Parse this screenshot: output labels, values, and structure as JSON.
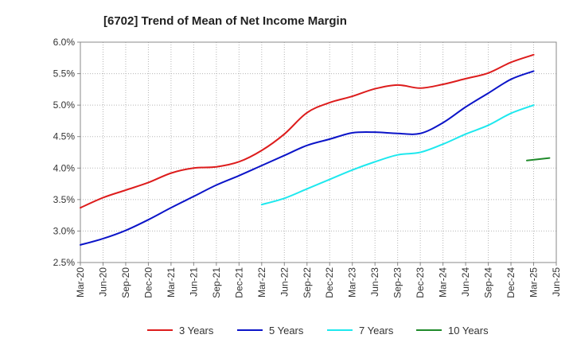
{
  "chart_data": {
    "type": "line",
    "title": "[6702]  Trend of Mean of Net Income Margin",
    "xlabel": "",
    "ylabel": "",
    "grid": true,
    "legend_position": "bottom",
    "x_ticks": [
      "Mar-20",
      "Jun-20",
      "Sep-20",
      "Dec-20",
      "Mar-21",
      "Jun-21",
      "Sep-21",
      "Dec-21",
      "Mar-22",
      "Jun-22",
      "Sep-22",
      "Dec-22",
      "Mar-23",
      "Jun-23",
      "Sep-23",
      "Dec-23",
      "Mar-24",
      "Jun-24",
      "Sep-24",
      "Dec-24",
      "Mar-25",
      "Jun-25"
    ],
    "y_ticks": [
      "2.5%",
      "3.0%",
      "3.5%",
      "4.0%",
      "4.5%",
      "5.0%",
      "5.5%",
      "6.0%"
    ],
    "ylim": [
      2.5,
      6.0
    ],
    "series": [
      {
        "name": "3 Years",
        "color": "#dd1c1c",
        "start_index": 0,
        "values": [
          3.37,
          3.53,
          3.65,
          3.77,
          3.92,
          4.0,
          4.02,
          4.1,
          4.28,
          4.54,
          4.88,
          5.04,
          5.14,
          5.26,
          5.32,
          5.27,
          5.33,
          5.42,
          5.51,
          5.68,
          5.8
        ]
      },
      {
        "name": "5 Years",
        "color": "#0b14c8",
        "start_index": 0,
        "values": [
          2.78,
          2.88,
          3.01,
          3.18,
          3.37,
          3.55,
          3.73,
          3.88,
          4.04,
          4.2,
          4.36,
          4.46,
          4.56,
          4.57,
          4.55,
          4.55,
          4.72,
          4.97,
          5.19,
          5.41,
          5.54
        ]
      },
      {
        "name": "7 Years",
        "color": "#1ee8ee",
        "start_index": 8,
        "values": [
          3.42,
          3.52,
          3.67,
          3.82,
          3.97,
          4.1,
          4.21,
          4.25,
          4.38,
          4.54,
          4.68,
          4.87,
          5.0
        ]
      },
      {
        "name": "10 Years",
        "color": "#1f8a2a",
        "start_index": 19.7,
        "values": [
          4.12,
          4.16
        ]
      }
    ]
  }
}
